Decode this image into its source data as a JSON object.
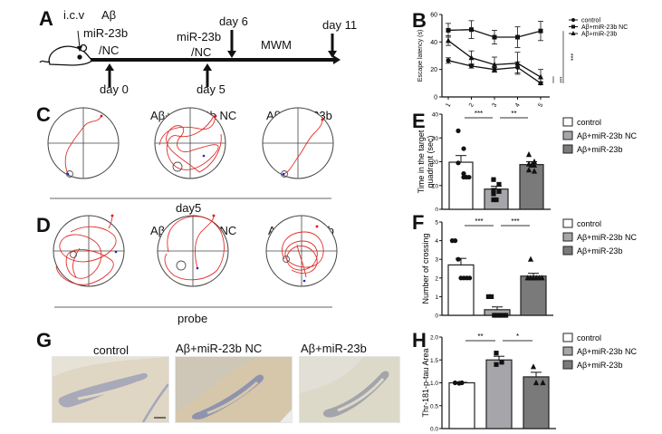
{
  "panels": {
    "A": {
      "label": "A",
      "route": "i.c.v",
      "agent": "Aβ",
      "treatment1": "miR-23b",
      "treatment1_b": "/NC",
      "treatment2": "miR-23b",
      "treatment2_b": "/NC",
      "day0": "day 0",
      "day5": "day 5",
      "day6": "day 6",
      "day11": "day 11",
      "test": "MWM"
    },
    "B": {
      "label": "B"
    },
    "C": {
      "label": "C",
      "groups": [
        "control",
        "Aβ+miR-23b NC",
        "Aβ+miR-23b"
      ],
      "caption": "day5"
    },
    "D": {
      "label": "D",
      "groups": [
        "control",
        "Aβ+miR-23b NC",
        "Aβ+miR-23b"
      ],
      "caption": "probe"
    },
    "E": {
      "label": "E"
    },
    "F": {
      "label": "F"
    },
    "G": {
      "label": "G",
      "groups": [
        "control",
        "Aβ+miR-23b NC",
        "Aβ+miR-23b"
      ]
    },
    "H": {
      "label": "H"
    }
  },
  "colors": {
    "control": "#ffffff",
    "nc": "#a6a6aa",
    "mir": "#7a7a7a",
    "track": "#e0302a",
    "tissue_bg": "#ddd3bf",
    "tissue_band": "#8f93ae"
  },
  "chart_data": [
    {
      "id": "B",
      "type": "line",
      "title": "",
      "xlabel": "",
      "ylabel": "Escape latency (s)",
      "x": [
        1,
        2,
        3,
        4,
        5
      ],
      "ylim": [
        0,
        60
      ],
      "yticks": [
        0,
        20,
        40,
        60
      ],
      "series": [
        {
          "name": "control",
          "marker": "circle",
          "values": [
            26.5,
            22.5,
            20,
            21.5,
            10
          ],
          "err": [
            2,
            1.5,
            1.5,
            4,
            1
          ]
        },
        {
          "name": "Aβ+miR-23b NC",
          "marker": "square",
          "values": [
            48.5,
            49,
            43.5,
            43.5,
            48
          ],
          "err": [
            5,
            6.5,
            5,
            7.5,
            7
          ]
        },
        {
          "name": "Aβ+miR-23b",
          "marker": "triangle",
          "values": [
            41,
            28.5,
            23.5,
            24.5,
            14.5
          ],
          "err": [
            3.5,
            5,
            5.5,
            8,
            5.5
          ]
        }
      ],
      "annotations": [
        "***",
        "***"
      ],
      "legend": "top-right"
    },
    {
      "id": "E",
      "type": "bar",
      "ylabel": "Time in the target quadrant (sec)",
      "categories": [
        "control",
        "Aβ+miR-23b NC",
        "Aβ+miR-23b"
      ],
      "values": [
        19.8,
        8.5,
        18.8
      ],
      "err": [
        2.8,
        1.2,
        1.2
      ],
      "points": [
        [
          33,
          25.5,
          19.5,
          15,
          13.5,
          13.5,
          13.5
        ],
        [
          6.5,
          7.5,
          4,
          4,
          8,
          10.5,
          12.5
        ],
        [
          23,
          20,
          19,
          18.5,
          18.5,
          16,
          16.5
        ]
      ],
      "ylim": [
        0,
        40
      ],
      "yticks": [
        0,
        10,
        20,
        30,
        40
      ],
      "significance": [
        {
          "pair": [
            0,
            1
          ],
          "label": "***"
        },
        {
          "pair": [
            1,
            2
          ],
          "label": "**"
        }
      ],
      "legend": "right"
    },
    {
      "id": "F",
      "type": "bar",
      "ylabel": "Number of crossing",
      "categories": [
        "control",
        "Aβ+miR-23b NC",
        "Aβ+miR-23b"
      ],
      "values": [
        2.7,
        0.3,
        2.1
      ],
      "err": [
        0.35,
        0.15,
        0.15
      ],
      "points": [
        [
          4,
          4,
          3,
          2,
          2,
          2,
          2
        ],
        [
          1,
          1,
          0,
          0,
          0,
          0,
          0
        ],
        [
          3,
          2,
          2,
          2,
          2,
          2,
          2
        ]
      ],
      "ylim": [
        0,
        5
      ],
      "yticks": [
        0,
        1,
        2,
        3,
        4,
        5
      ],
      "significance": [
        {
          "pair": [
            0,
            1
          ],
          "label": "***"
        },
        {
          "pair": [
            1,
            2
          ],
          "label": "***"
        }
      ],
      "legend": "right"
    },
    {
      "id": "H",
      "type": "bar",
      "ylabel": "Thr-181-p-tau Area",
      "categories": [
        "control",
        "Aβ+miR-23b NC",
        "Aβ+miR-23b"
      ],
      "values": [
        1.0,
        1.5,
        1.13
      ],
      "err": [
        0.01,
        0.08,
        0.1
      ],
      "points": [
        [
          1.0,
          1.0,
          0.99
        ],
        [
          1.65,
          1.45,
          1.4
        ],
        [
          1.35,
          1.0,
          1.0
        ]
      ],
      "ylim": [
        0,
        2.0
      ],
      "yticks": [
        "0.0",
        "0.5",
        "1.0",
        "1.5",
        "2.0"
      ],
      "significance": [
        {
          "pair": [
            0,
            1
          ],
          "label": "**"
        },
        {
          "pair": [
            1,
            2
          ],
          "label": "*"
        }
      ],
      "legend": "right"
    }
  ]
}
